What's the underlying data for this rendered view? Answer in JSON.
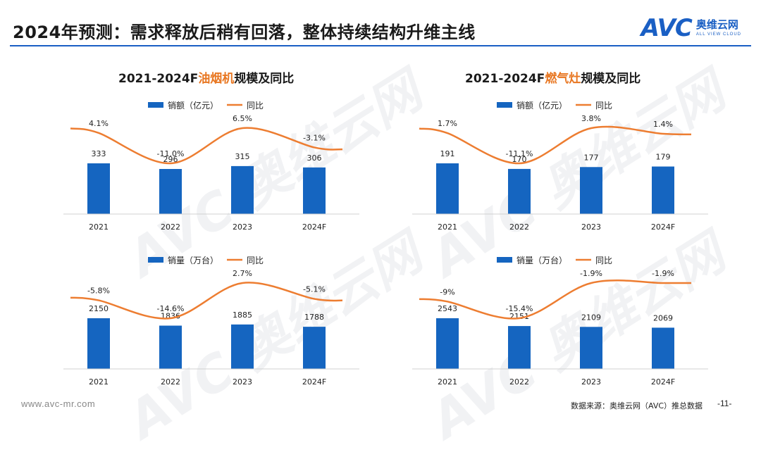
{
  "header": {
    "title": "2024年预测：需求释放后稍有回落，整体持续结构升维主线",
    "brand_mark": "AVC",
    "brand_cn": "奥维云网",
    "brand_en": "ALL VIEW CLOUD"
  },
  "watermark": "AVC 奥维云网",
  "charts": {
    "hood_title_pre": "2021-2024F",
    "hood_title_hl": "油烟机",
    "hood_title_post": "规模及同比",
    "stove_title_pre": "2021-2024F",
    "stove_title_hl": "燃气灶",
    "stove_title_post": "规模及同比"
  },
  "chart_data": [
    {
      "type": "bar",
      "id": "hood_sales",
      "categories": [
        "2021",
        "2022",
        "2023",
        "2024F"
      ],
      "series": [
        {
          "name": "销额（亿元）",
          "kind": "bar",
          "values": [
            333,
            296,
            315,
            306
          ],
          "labels": [
            "333",
            "296",
            "315",
            "306"
          ]
        },
        {
          "name": "同比",
          "kind": "line",
          "values": [
            4.1,
            -11.0,
            6.5,
            -3.1
          ],
          "labels": [
            "4.1%",
            "-11.0%",
            "6.5%",
            "-3.1%"
          ]
        }
      ],
      "colors": {
        "bar": "#1565c0",
        "line": "#ed7d31"
      }
    },
    {
      "type": "bar",
      "id": "stove_sales",
      "categories": [
        "2021",
        "2022",
        "2023",
        "2024F"
      ],
      "series": [
        {
          "name": "销额（亿元）",
          "kind": "bar",
          "values": [
            191,
            170,
            177,
            179
          ],
          "labels": [
            "191",
            "170",
            "177",
            "179"
          ]
        },
        {
          "name": "同比",
          "kind": "line",
          "values": [
            1.7,
            -11.1,
            3.8,
            1.4
          ],
          "labels": [
            "1.7%",
            "-11.1%",
            "3.8%",
            "1.4%"
          ]
        }
      ],
      "colors": {
        "bar": "#1565c0",
        "line": "#ed7d31"
      }
    },
    {
      "type": "bar",
      "id": "hood_volume",
      "categories": [
        "2021",
        "2022",
        "2023",
        "2024F"
      ],
      "series": [
        {
          "name": "销量（万台）",
          "kind": "bar",
          "values": [
            2150,
            1836,
            1885,
            1788
          ],
          "labels": [
            "2150",
            "1836",
            "1885",
            "1788"
          ]
        },
        {
          "name": "同比",
          "kind": "line",
          "values": [
            -5.8,
            -14.6,
            2.7,
            -5.1
          ],
          "labels": [
            "-5.8%",
            "-14.6%",
            "2.7%",
            "-5.1%"
          ]
        }
      ],
      "colors": {
        "bar": "#1565c0",
        "line": "#ed7d31"
      }
    },
    {
      "type": "bar",
      "id": "stove_volume",
      "categories": [
        "2021",
        "2022",
        "2023",
        "2024F"
      ],
      "series": [
        {
          "name": "销量（万台）",
          "kind": "bar",
          "values": [
            2543,
            2151,
            2109,
            2069
          ],
          "labels": [
            "2543",
            "2151",
            "2109",
            "2069"
          ]
        },
        {
          "name": "同比",
          "kind": "line",
          "values": [
            -9,
            -15.4,
            -1.9,
            -1.9
          ],
          "labels": [
            "-9%",
            "-15.4%",
            "-1.9%",
            "-1.9%"
          ]
        }
      ],
      "colors": {
        "bar": "#1565c0",
        "line": "#ed7d31"
      }
    }
  ],
  "footer": {
    "url": "www.avc-mr.com",
    "source": "数据来源：奥维云网（AVC）推总数据",
    "page": "-11-"
  }
}
